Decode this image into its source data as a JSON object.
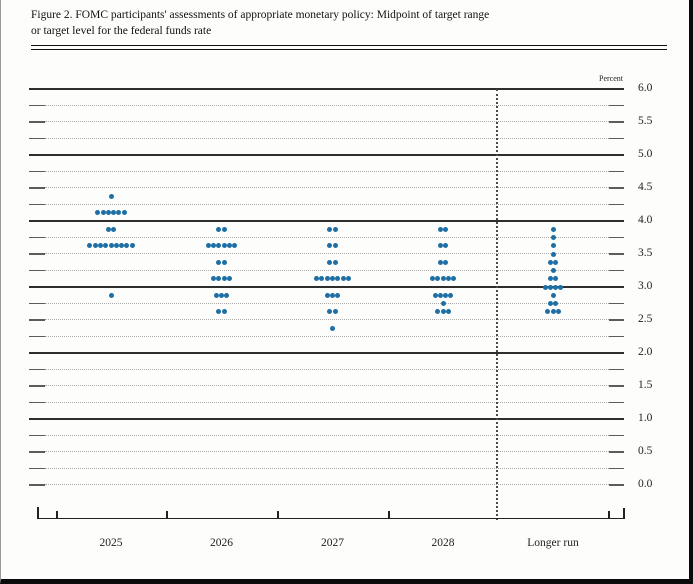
{
  "figure": {
    "title_line1": "Figure 2. FOMC participants' assessments of appropriate monetary policy: Midpoint of target range",
    "title_line2": "or target level for the federal funds rate"
  },
  "chart_data": {
    "type": "scatter",
    "subtype": "fomc-dot-plot",
    "title": "Figure 2. FOMC participants' assessments of appropriate monetary policy: Midpoint of target range or target level for the federal funds rate",
    "ylabel": "Percent",
    "ylim": [
      0.0,
      6.0
    ],
    "gridline_step": 0.25,
    "y_tick_label_step": 0.5,
    "grid_on": true,
    "solid_gridlines": [
      6.0,
      5.0,
      4.0,
      3.0,
      2.0,
      1.0
    ],
    "y_tick_labels": [
      "6.0",
      "5.5",
      "5.0",
      "4.5",
      "4.0",
      "3.5",
      "3.0",
      "2.5",
      "2.0",
      "1.5",
      "1.0",
      "0.5",
      "0.0"
    ],
    "categories": [
      "2025",
      "2026",
      "2027",
      "2028",
      "Longer run"
    ],
    "separator_before_category": "Longer run",
    "dot_color": "#1e6fa5",
    "participants_per_year": 19,
    "series": [
      {
        "name": "2025",
        "dots": [
          {
            "rate": 4.375,
            "count": 1
          },
          {
            "rate": 4.125,
            "count": 6
          },
          {
            "rate": 3.875,
            "count": 2
          },
          {
            "rate": 3.625,
            "count": 9
          },
          {
            "rate": 2.875,
            "count": 1
          }
        ]
      },
      {
        "name": "2026",
        "dots": [
          {
            "rate": 3.875,
            "count": 2
          },
          {
            "rate": 3.625,
            "count": 6
          },
          {
            "rate": 3.375,
            "count": 2
          },
          {
            "rate": 3.125,
            "count": 4
          },
          {
            "rate": 2.875,
            "count": 3
          },
          {
            "rate": 2.625,
            "count": 2
          }
        ]
      },
      {
        "name": "2027",
        "dots": [
          {
            "rate": 3.875,
            "count": 2
          },
          {
            "rate": 3.625,
            "count": 2
          },
          {
            "rate": 3.375,
            "count": 2
          },
          {
            "rate": 3.125,
            "count": 7
          },
          {
            "rate": 2.875,
            "count": 3
          },
          {
            "rate": 2.625,
            "count": 2
          },
          {
            "rate": 2.375,
            "count": 1
          }
        ]
      },
      {
        "name": "2028",
        "dots": [
          {
            "rate": 3.875,
            "count": 2
          },
          {
            "rate": 3.625,
            "count": 2
          },
          {
            "rate": 3.375,
            "count": 2
          },
          {
            "rate": 3.125,
            "count": 5
          },
          {
            "rate": 2.875,
            "count": 4
          },
          {
            "rate": 2.75,
            "count": 1
          },
          {
            "rate": 2.625,
            "count": 3
          }
        ]
      },
      {
        "name": "Longer run",
        "dots": [
          {
            "rate": 3.875,
            "count": 1
          },
          {
            "rate": 3.75,
            "count": 1
          },
          {
            "rate": 3.625,
            "count": 1
          },
          {
            "rate": 3.5,
            "count": 1
          },
          {
            "rate": 3.375,
            "count": 2
          },
          {
            "rate": 3.25,
            "count": 1
          },
          {
            "rate": 3.125,
            "count": 2
          },
          {
            "rate": 3.0,
            "count": 4
          },
          {
            "rate": 2.875,
            "count": 1
          },
          {
            "rate": 2.75,
            "count": 2
          },
          {
            "rate": 2.625,
            "count": 3
          }
        ]
      }
    ]
  }
}
